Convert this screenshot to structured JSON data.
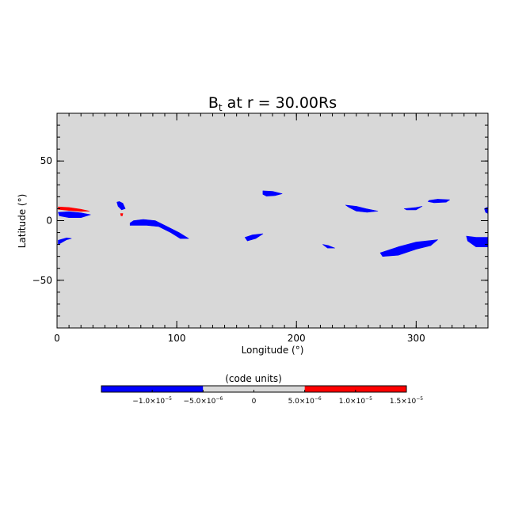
{
  "chart_data": {
    "type": "heatmap",
    "title": {
      "prefix": "B",
      "subscript": "t",
      "suffix": " at r = 30.00Rs"
    },
    "xlabel": "Longitude (°)",
    "ylabel": "Latitude (°)",
    "xlim": [
      0,
      360
    ],
    "ylim": [
      -90,
      90
    ],
    "xticks": [
      0,
      100,
      200,
      300
    ],
    "yticks": [
      -50,
      0,
      50
    ],
    "background_color": "#d8d8d8",
    "colorbar": {
      "label": "(code units)",
      "range": [
        -1.5e-05,
        1.5e-05
      ],
      "segments": [
        {
          "from": -1.5e-05,
          "to": -5e-06,
          "color": "#0000ff"
        },
        {
          "from": -5e-06,
          "to": 5e-06,
          "color": "#d8d8d8"
        },
        {
          "from": 5e-06,
          "to": 1.5e-05,
          "color": "#ff0000"
        }
      ],
      "ticks": [
        {
          "value": -1e-05,
          "mantissa": "−1.0×10",
          "exponent": "−5"
        },
        {
          "value": -5e-06,
          "mantissa": "−5.0×10",
          "exponent": "−6"
        },
        {
          "value": 0,
          "mantissa": "0",
          "exponent": ""
        },
        {
          "value": 5e-06,
          "mantissa": "5.0×10",
          "exponent": "−6"
        },
        {
          "value": 1e-05,
          "mantissa": "1.0×10",
          "exponent": "−5"
        },
        {
          "value": 1.5e-05,
          "mantissa": "1.5×10",
          "exponent": "−5"
        }
      ]
    },
    "regions": [
      {
        "sign": "negative",
        "color": "#0000ff",
        "points": [
          [
            1,
            7
          ],
          [
            10,
            7.5
          ],
          [
            20,
            6.5
          ],
          [
            28,
            5
          ],
          [
            20,
            2.5
          ],
          [
            10,
            2.5
          ],
          [
            2,
            4
          ]
        ]
      },
      {
        "sign": "positive",
        "color": "#ff0000",
        "points": [
          [
            1,
            11.5
          ],
          [
            10,
            11
          ],
          [
            20,
            9.5
          ],
          [
            27,
            8
          ],
          [
            20,
            7.8
          ],
          [
            10,
            8.5
          ],
          [
            1,
            9.5
          ]
        ]
      },
      {
        "sign": "negative",
        "color": "#0000ff",
        "points": [
          [
            1,
            -16.5
          ],
          [
            8,
            -14.5
          ],
          [
            12,
            -15
          ],
          [
            8,
            -16
          ],
          [
            1,
            -20
          ]
        ]
      },
      {
        "sign": "negative",
        "color": "#0000ff",
        "points": [
          [
            50,
            15.5
          ],
          [
            52,
            16
          ],
          [
            55,
            14.5
          ],
          [
            57,
            10
          ],
          [
            54,
            9
          ],
          [
            51,
            12
          ]
        ]
      },
      {
        "sign": "positive",
        "color": "#ff0000",
        "points": [
          [
            53,
            6
          ],
          [
            55,
            6
          ],
          [
            54.5,
            4
          ],
          [
            53.5,
            4
          ]
        ]
      },
      {
        "sign": "negative",
        "color": "#0000ff",
        "points": [
          [
            61,
            -2
          ],
          [
            64,
            0
          ],
          [
            72,
            1
          ],
          [
            82,
            0
          ],
          [
            92,
            -5
          ],
          [
            102,
            -10
          ],
          [
            110,
            -15
          ],
          [
            103,
            -15
          ],
          [
            95,
            -10
          ],
          [
            85,
            -5
          ],
          [
            75,
            -4
          ],
          [
            65,
            -4
          ],
          [
            61,
            -4
          ]
        ]
      },
      {
        "sign": "negative",
        "color": "#0000ff",
        "points": [
          [
            157,
            -14
          ],
          [
            163,
            -12
          ],
          [
            172,
            -11
          ],
          [
            166,
            -15
          ],
          [
            159,
            -17
          ]
        ]
      },
      {
        "sign": "negative",
        "color": "#0000ff",
        "points": [
          [
            172,
            25
          ],
          [
            180,
            24.5
          ],
          [
            188,
            22.5
          ],
          [
            182,
            21
          ],
          [
            175,
            20.5
          ],
          [
            172,
            22
          ]
        ]
      },
      {
        "sign": "negative",
        "color": "#0000ff",
        "points": [
          [
            222,
            -20
          ],
          [
            227,
            -21
          ],
          [
            232,
            -23
          ],
          [
            226,
            -23
          ]
        ]
      },
      {
        "sign": "negative",
        "color": "#0000ff",
        "points": [
          [
            241,
            13
          ],
          [
            250,
            12
          ],
          [
            258,
            10
          ],
          [
            268,
            8
          ],
          [
            259,
            7
          ],
          [
            250,
            8
          ],
          [
            244,
            11
          ]
        ]
      },
      {
        "sign": "negative",
        "color": "#0000ff",
        "points": [
          [
            270,
            -27
          ],
          [
            285,
            -22
          ],
          [
            300,
            -18
          ],
          [
            318,
            -16
          ],
          [
            312,
            -21
          ],
          [
            300,
            -24
          ],
          [
            285,
            -29
          ],
          [
            272,
            -30
          ]
        ]
      },
      {
        "sign": "negative",
        "color": "#0000ff",
        "points": [
          [
            290,
            10
          ],
          [
            300,
            11
          ],
          [
            305,
            12
          ],
          [
            300,
            9
          ],
          [
            292,
            9
          ]
        ]
      },
      {
        "sign": "negative",
        "color": "#0000ff",
        "points": [
          [
            311,
            17
          ],
          [
            318,
            18
          ],
          [
            328,
            17.5
          ],
          [
            325,
            15.5
          ],
          [
            315,
            15
          ],
          [
            310,
            16
          ]
        ]
      },
      {
        "sign": "negative",
        "color": "#0000ff",
        "points": [
          [
            342,
            -13
          ],
          [
            350,
            -14
          ],
          [
            360,
            -14
          ],
          [
            360,
            -22
          ],
          [
            350,
            -22
          ],
          [
            343,
            -17
          ]
        ]
      },
      {
        "sign": "negative",
        "color": "#0000ff",
        "points": [
          [
            357,
            10
          ],
          [
            359,
            11
          ],
          [
            360,
            11
          ],
          [
            360,
            6
          ],
          [
            358,
            7
          ]
        ]
      }
    ]
  }
}
